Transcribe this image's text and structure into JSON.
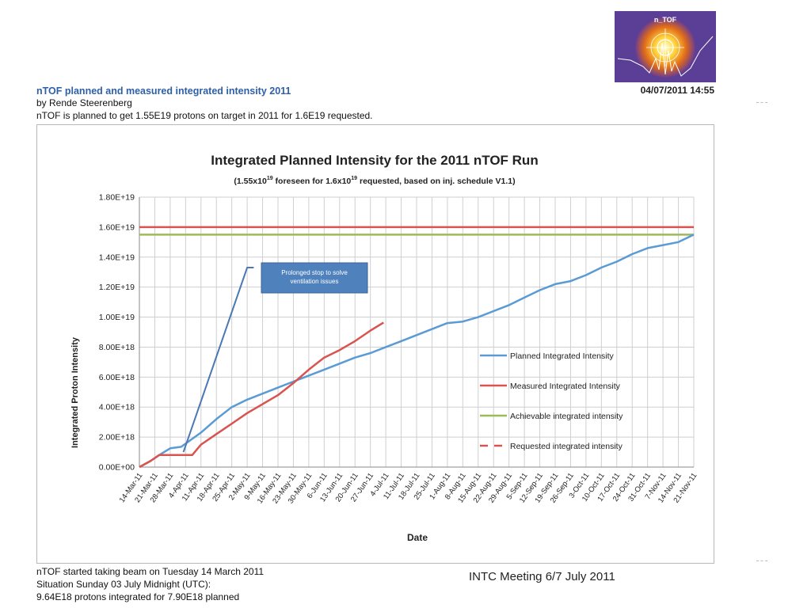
{
  "header": {
    "title": "nTOF planned and measured integrated intensity 2011",
    "author": "by Rende Steerenberg",
    "summary": "nTOF is planned to get 1.55E19 protons on target in 2011 for 1.6E19 requested.",
    "timestamp": "04/07/2011 14:55",
    "logo_text": "n_TOF"
  },
  "footer": {
    "line1": "nTOF started taking beam on Tuesday 14 March 2011",
    "line2": "Situation Sunday 03 July Midnight (UTC):",
    "line3": "9.64E18 protons integrated for 7.90E18 planned"
  },
  "meeting": "INTC Meeting    6/7 July 2011",
  "chart_data": {
    "type": "line",
    "title": "Integrated Planned Intensity for the 2011 nTOF Run",
    "subtitle": "(1.55x10^19 foreseen for 1.6x10^19 requested, based on inj. schedule V1.1)",
    "xlabel": "Date",
    "ylabel": "Integrated Proton Intensity",
    "ylim": [
      0,
      1.8e+19
    ],
    "grid": true,
    "legend_position": "right",
    "x_ticks": [
      "14-Mar-11",
      "21-Mar-11",
      "28-Mar-11",
      "4-Apr-11",
      "11-Apr-11",
      "18-Apr-11",
      "25-Apr-11",
      "2-May-11",
      "9-May-11",
      "16-May-11",
      "23-May-11",
      "30-May-11",
      "6-Jun-11",
      "13-Jun-11",
      "20-Jun-11",
      "27-Jun-11",
      "4-Jul-11",
      "11-Jul-11",
      "18-Jul-11",
      "25-Jul-11",
      "1-Aug-11",
      "8-Aug-11",
      "15-Aug-11",
      "22-Aug-11",
      "29-Aug-11",
      "5-Sep-11",
      "12-Sep-11",
      "19-Sep-11",
      "26-Sep-11",
      "3-Oct-11",
      "10-Oct-11",
      "17-Oct-11",
      "24-Oct-11",
      "31-Oct-11",
      "7-Nov-11",
      "14-Nov-11",
      "21-Nov-11"
    ],
    "y_ticks": [
      "0.00E+00",
      "2.00E+18",
      "4.00E+18",
      "6.00E+18",
      "8.00E+18",
      "1.00E+19",
      "1.20E+19",
      "1.40E+19",
      "1.60E+19",
      "1.80E+19"
    ],
    "series": [
      {
        "name": "Planned  Integrated Intensity",
        "color": "#5b9bd5",
        "style": "solid",
        "points": [
          [
            "14-Mar-11",
            0
          ],
          [
            "19-Mar-11",
            4e+17
          ],
          [
            "23-Mar-11",
            8e+17
          ],
          [
            "28-Mar-11",
            1.25e+18
          ],
          [
            "2-Apr-11",
            1.35e+18
          ],
          [
            "11-Apr-11",
            2.3e+18
          ],
          [
            "18-Apr-11",
            3.2e+18
          ],
          [
            "25-Apr-11",
            4e+18
          ],
          [
            "2-May-11",
            4.5e+18
          ],
          [
            "9-May-11",
            4.9e+18
          ],
          [
            "16-May-11",
            5.3e+18
          ],
          [
            "23-May-11",
            5.7e+18
          ],
          [
            "30-May-11",
            6.1e+18
          ],
          [
            "6-Jun-11",
            6.5e+18
          ],
          [
            "13-Jun-11",
            6.9e+18
          ],
          [
            "20-Jun-11",
            7.3e+18
          ],
          [
            "27-Jun-11",
            7.6e+18
          ],
          [
            "4-Jul-11",
            8e+18
          ],
          [
            "11-Jul-11",
            8.4e+18
          ],
          [
            "18-Jul-11",
            8.8e+18
          ],
          [
            "25-Jul-11",
            9.2e+18
          ],
          [
            "1-Aug-11",
            9.6e+18
          ],
          [
            "8-Aug-11",
            9.7e+18
          ],
          [
            "15-Aug-11",
            1e+19
          ],
          [
            "22-Aug-11",
            1.04e+19
          ],
          [
            "29-Aug-11",
            1.08e+19
          ],
          [
            "5-Sep-11",
            1.13e+19
          ],
          [
            "12-Sep-11",
            1.18e+19
          ],
          [
            "19-Sep-11",
            1.22e+19
          ],
          [
            "26-Sep-11",
            1.24e+19
          ],
          [
            "3-Oct-11",
            1.28e+19
          ],
          [
            "10-Oct-11",
            1.33e+19
          ],
          [
            "17-Oct-11",
            1.37e+19
          ],
          [
            "24-Oct-11",
            1.42e+19
          ],
          [
            "31-Oct-11",
            1.46e+19
          ],
          [
            "7-Nov-11",
            1.48e+19
          ],
          [
            "14-Nov-11",
            1.5e+19
          ],
          [
            "21-Nov-11",
            1.55e+19
          ]
        ]
      },
      {
        "name": "Measured  Integrated  Intensity",
        "color": "#d9534f",
        "style": "solid",
        "points": [
          [
            "14-Mar-11",
            0
          ],
          [
            "19-Mar-11",
            4e+17
          ],
          [
            "23-Mar-11",
            8e+17
          ],
          [
            "28-Mar-11",
            8e+17
          ],
          [
            "4-Apr-11",
            8e+17
          ],
          [
            "7-Apr-11",
            8e+17
          ],
          [
            "11-Apr-11",
            1.5e+18
          ],
          [
            "18-Apr-11",
            2.2e+18
          ],
          [
            "25-Apr-11",
            2.9e+18
          ],
          [
            "2-May-11",
            3.6e+18
          ],
          [
            "9-May-11",
            4.2e+18
          ],
          [
            "16-May-11",
            4.8e+18
          ],
          [
            "23-May-11",
            5.6e+18
          ],
          [
            "30-May-11",
            6.5e+18
          ],
          [
            "6-Jun-11",
            7.3e+18
          ],
          [
            "13-Jun-11",
            7.8e+18
          ],
          [
            "20-Jun-11",
            8.4e+18
          ],
          [
            "27-Jun-11",
            9.1e+18
          ],
          [
            "3-Jul-11",
            9.64e+18
          ]
        ]
      },
      {
        "name": "Achievable integrated intensity",
        "color": "#9bbb59",
        "style": "solid",
        "points": [
          [
            "14-Mar-11",
            1.55e+19
          ],
          [
            "21-Nov-11",
            1.55e+19
          ]
        ]
      },
      {
        "name": "Requested integrated  intensity",
        "color": "#d9534f",
        "style": "dashed",
        "points": [
          [
            "14-Mar-11",
            1.6e+19
          ],
          [
            "21-Nov-11",
            1.6e+19
          ]
        ]
      }
    ],
    "extra_lines": [
      {
        "color": "#4a78b5",
        "points": [
          [
            "3-Apr-11",
            1e+18
          ],
          [
            "2-May-11",
            1.33e+19
          ],
          [
            "5-May-11",
            1.33e+19
          ]
        ]
      }
    ],
    "annotations": [
      {
        "text_lines": [
          "Prolonged  stop  to solve",
          "ventilation issues"
        ],
        "fill": "#4f81bd"
      }
    ]
  }
}
